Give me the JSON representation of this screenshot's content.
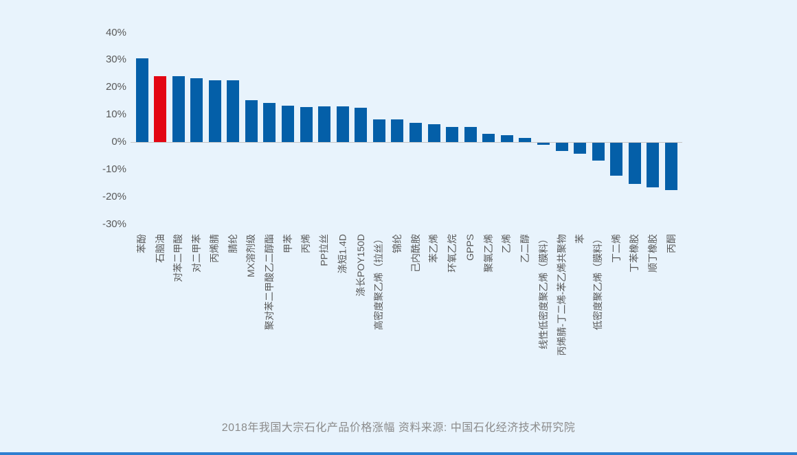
{
  "background_color": "#e8f3fc",
  "chart_data": {
    "type": "bar",
    "title": "2018年我国大宗石化产品价格涨幅 资料来源: 中国石化经济技术研究院",
    "categories": [
      "苯酚",
      "石脑油",
      "对苯二甲酸",
      "对二甲苯",
      "丙烯腈",
      "腈纶",
      "MX溶剂级",
      "聚对苯二甲酸乙二醇酯",
      "甲苯",
      "丙烯",
      "PP拉丝",
      "涤短1.4D",
      "涤长POY150D",
      "高密度聚乙烯（拉丝）",
      "锦纶",
      "己内酰胺",
      "苯乙烯",
      "环氧乙烷",
      "GPPS",
      "聚氯乙烯",
      "乙烯",
      "乙二醇",
      "线性低密度聚乙烯（膜料）",
      "丙烯腈-丁二烯-苯乙烯共聚物",
      "苯",
      "低密度聚乙烯（膜料）",
      "丁二烯",
      "丁苯橡胶",
      "顺丁橡胶",
      "丙酮"
    ],
    "values": [
      30.7,
      24.2,
      24.2,
      23.3,
      22.5,
      22.5,
      15.3,
      14.3,
      13.3,
      12.8,
      13.0,
      13.0,
      12.5,
      8.2,
      8.3,
      6.9,
      6.4,
      5.5,
      5.6,
      3.1,
      2.4,
      1.4,
      -0.7,
      -3.1,
      -3.9,
      -6.6,
      -12.1,
      -15.1,
      -16.3,
      -17.2
    ],
    "highlight_index": 1,
    "bar_color": "#045fa8",
    "highlight_color": "#e30613",
    "ylim": [
      -30,
      40
    ],
    "ytick_values": [
      40,
      30,
      20,
      10,
      0,
      -10,
      -20,
      -30
    ],
    "ytick_labels": [
      "40%",
      "30%",
      "20%",
      "10%",
      "0%",
      "-10%",
      "-20%",
      "-30%"
    ],
    "grid": false,
    "legend": null,
    "xlabel": "",
    "ylabel": ""
  },
  "footer": {
    "strip_color": "#2e7fd0"
  }
}
